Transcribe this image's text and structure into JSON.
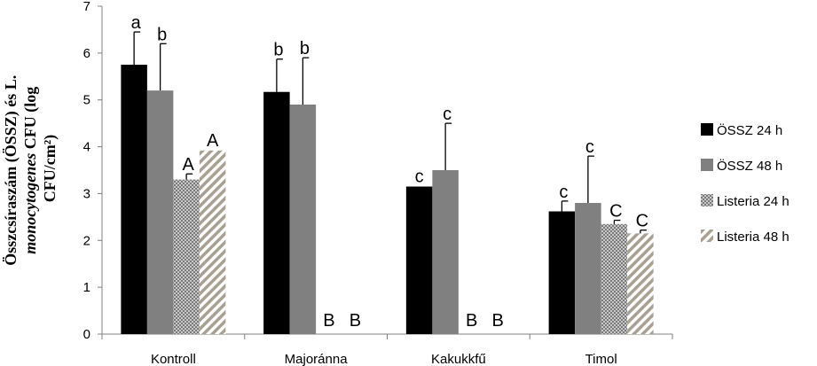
{
  "chart_data": {
    "type": "bar",
    "categories": [
      "Kontroll",
      "Majoránna",
      "Kakukkfű",
      "Timol"
    ],
    "ylim": [
      0,
      7
    ],
    "yticks": [
      0,
      1,
      2,
      3,
      4,
      5,
      6,
      7
    ],
    "ylabel": {
      "line1": "Összcsíraszám (ÖSSZ) és L.",
      "line2_italic": "monocytogenes",
      "line2_rest": " CFU (log",
      "line3": "CFU/cm²)"
    },
    "legend_position": "right",
    "grid": false,
    "series": [
      {
        "name": "ÖSSZ 24 h",
        "color": "#000000",
        "pattern": "solid",
        "values": [
          5.75,
          5.17,
          3.15,
          2.62
        ],
        "errors": [
          0.7,
          0.7,
          null,
          0.22
        ],
        "labels": [
          "a",
          "b",
          "c",
          "c"
        ]
      },
      {
        "name": "ÖSSZ 48 h",
        "color": "#808080",
        "pattern": "solid",
        "values": [
          5.2,
          4.9,
          3.5,
          2.8
        ],
        "errors": [
          1.0,
          1.0,
          1.0,
          1.0
        ],
        "labels": [
          "b",
          "b",
          "c",
          "c"
        ]
      },
      {
        "name": "Listeria 24 h",
        "color": "#9a9a9a",
        "pattern": "dots",
        "values": [
          3.3,
          0,
          0,
          2.35
        ],
        "errors": [
          0.12,
          null,
          null,
          0.08
        ],
        "labels": [
          "A",
          "B",
          "B",
          "C"
        ]
      },
      {
        "name": "Listeria 48 h",
        "color": "#9c9484",
        "pattern": "diagonal",
        "values": [
          3.92,
          0,
          0,
          2.15
        ],
        "errors": [
          null,
          null,
          null,
          0.07
        ],
        "labels": [
          "A",
          "B",
          "B",
          "C"
        ]
      }
    ]
  }
}
